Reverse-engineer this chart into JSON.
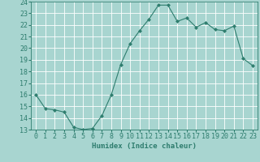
{
  "x": [
    0,
    1,
    2,
    3,
    4,
    5,
    6,
    7,
    8,
    9,
    10,
    11,
    12,
    13,
    14,
    15,
    16,
    17,
    18,
    19,
    20,
    21,
    22,
    23
  ],
  "y": [
    16.0,
    14.8,
    14.7,
    14.5,
    13.2,
    13.0,
    13.1,
    14.2,
    16.0,
    18.6,
    20.4,
    21.5,
    22.5,
    23.7,
    23.7,
    22.3,
    22.6,
    21.8,
    22.2,
    21.6,
    21.5,
    21.9,
    19.1,
    18.5
  ],
  "line_color": "#2e7d6e",
  "marker_color": "#2e7d6e",
  "bg_color": "#a8d5d0",
  "grid_color": "#ffffff",
  "text_color": "#2e7d6e",
  "xlabel": "Humidex (Indice chaleur)",
  "ylim": [
    13,
    24
  ],
  "xlim": [
    -0.5,
    23.5
  ],
  "yticks": [
    13,
    14,
    15,
    16,
    17,
    18,
    19,
    20,
    21,
    22,
    23,
    24
  ],
  "xticks": [
    0,
    1,
    2,
    3,
    4,
    5,
    6,
    7,
    8,
    9,
    10,
    11,
    12,
    13,
    14,
    15,
    16,
    17,
    18,
    19,
    20,
    21,
    22,
    23
  ],
  "xlabel_fontsize": 6.5,
  "tick_fontsize": 6
}
